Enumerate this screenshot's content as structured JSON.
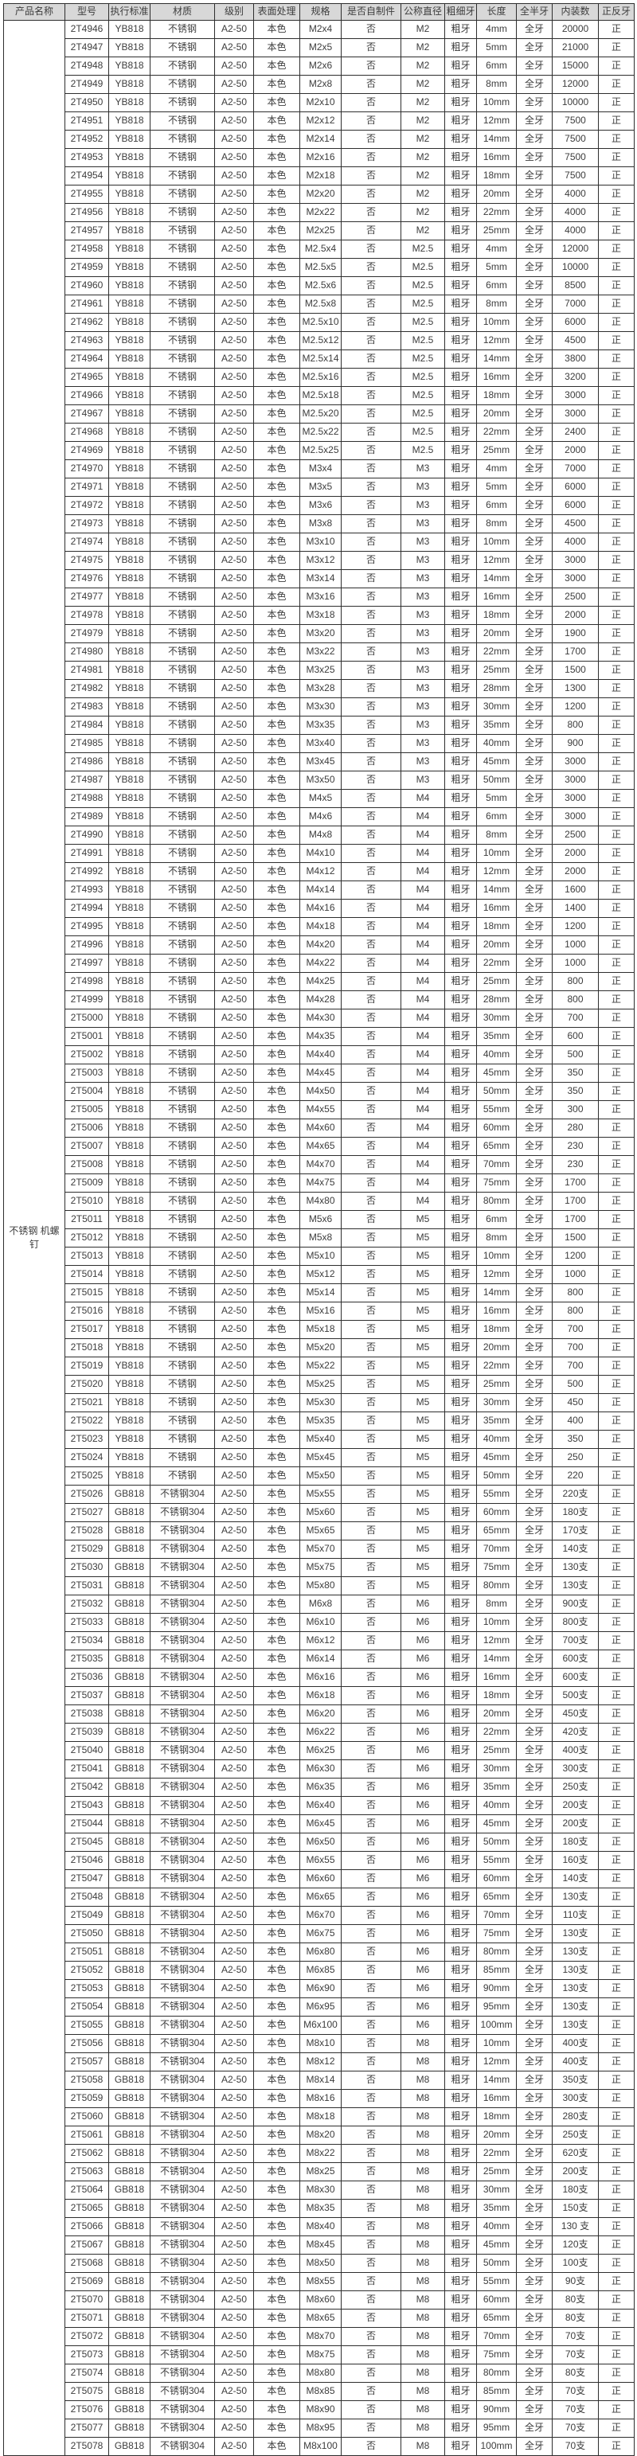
{
  "table": {
    "headers": [
      "产品名称",
      "型号",
      "执行标准",
      "材质",
      "级别",
      "表面处理",
      "规格",
      "是否自制件",
      "公称直径",
      "粗细牙",
      "长度",
      "全半牙",
      "内装数",
      "正反牙"
    ],
    "product_name": "不锈钢 机螺钉",
    "constants": {
      "grade": "A2-50",
      "surface": "本色",
      "self_made": "否",
      "thread": "粗牙",
      "full_thread": "全牙",
      "direction": "正"
    },
    "rows": [
      [
        "2T4946",
        "YB818",
        "不锈钢",
        "M2x4",
        "M2",
        "4mm",
        "20000"
      ],
      [
        "2T4947",
        "YB818",
        "不锈钢",
        "M2x5",
        "M2",
        "5mm",
        "21000"
      ],
      [
        "2T4948",
        "YB818",
        "不锈钢",
        "M2x6",
        "M2",
        "6mm",
        "15000"
      ],
      [
        "2T4949",
        "YB818",
        "不锈钢",
        "M2x8",
        "M2",
        "8mm",
        "12000"
      ],
      [
        "2T4950",
        "YB818",
        "不锈钢",
        "M2x10",
        "M2",
        "10mm",
        "10000"
      ],
      [
        "2T4951",
        "YB818",
        "不锈钢",
        "M2x12",
        "M2",
        "12mm",
        "7500"
      ],
      [
        "2T4952",
        "YB818",
        "不锈钢",
        "M2x14",
        "M2",
        "14mm",
        "7500"
      ],
      [
        "2T4953",
        "YB818",
        "不锈钢",
        "M2x16",
        "M2",
        "16mm",
        "7500"
      ],
      [
        "2T4954",
        "YB818",
        "不锈钢",
        "M2x18",
        "M2",
        "18mm",
        "7500"
      ],
      [
        "2T4955",
        "YB818",
        "不锈钢",
        "M2x20",
        "M2",
        "20mm",
        "4000"
      ],
      [
        "2T4956",
        "YB818",
        "不锈钢",
        "M2x22",
        "M2",
        "22mm",
        "4000"
      ],
      [
        "2T4957",
        "YB818",
        "不锈钢",
        "M2x25",
        "M2",
        "25mm",
        "4000"
      ],
      [
        "2T4958",
        "YB818",
        "不锈钢",
        "M2.5x4",
        "M2.5",
        "4mm",
        "12000"
      ],
      [
        "2T4959",
        "YB818",
        "不锈钢",
        "M2.5x5",
        "M2.5",
        "5mm",
        "10000"
      ],
      [
        "2T4960",
        "YB818",
        "不锈钢",
        "M2.5x6",
        "M2.5",
        "6mm",
        "8500"
      ],
      [
        "2T4961",
        "YB818",
        "不锈钢",
        "M2.5x8",
        "M2.5",
        "8mm",
        "7000"
      ],
      [
        "2T4962",
        "YB818",
        "不锈钢",
        "M2.5x10",
        "M2.5",
        "10mm",
        "6000"
      ],
      [
        "2T4963",
        "YB818",
        "不锈钢",
        "M2.5x12",
        "M2.5",
        "12mm",
        "4500"
      ],
      [
        "2T4964",
        "YB818",
        "不锈钢",
        "M2.5x14",
        "M2.5",
        "14mm",
        "3800"
      ],
      [
        "2T4965",
        "YB818",
        "不锈钢",
        "M2.5x16",
        "M2.5",
        "16mm",
        "3200"
      ],
      [
        "2T4966",
        "YB818",
        "不锈钢",
        "M2.5x18",
        "M2.5",
        "18mm",
        "3000"
      ],
      [
        "2T4967",
        "YB818",
        "不锈钢",
        "M2.5x20",
        "M2.5",
        "20mm",
        "3000"
      ],
      [
        "2T4968",
        "YB818",
        "不锈钢",
        "M2.5x22",
        "M2.5",
        "22mm",
        "2400"
      ],
      [
        "2T4969",
        "YB818",
        "不锈钢",
        "M2.5x25",
        "M2.5",
        "25mm",
        "2000"
      ],
      [
        "2T4970",
        "YB818",
        "不锈钢",
        "M3x4",
        "M3",
        "4mm",
        "7000"
      ],
      [
        "2T4971",
        "YB818",
        "不锈钢",
        "M3x5",
        "M3",
        "5mm",
        "6000"
      ],
      [
        "2T4972",
        "YB818",
        "不锈钢",
        "M3x6",
        "M3",
        "6mm",
        "6000"
      ],
      [
        "2T4973",
        "YB818",
        "不锈钢",
        "M3x8",
        "M3",
        "8mm",
        "4500"
      ],
      [
        "2T4974",
        "YB818",
        "不锈钢",
        "M3x10",
        "M3",
        "10mm",
        "4000"
      ],
      [
        "2T4975",
        "YB818",
        "不锈钢",
        "M3x12",
        "M3",
        "12mm",
        "3000"
      ],
      [
        "2T4976",
        "YB818",
        "不锈钢",
        "M3x14",
        "M3",
        "14mm",
        "3000"
      ],
      [
        "2T4977",
        "YB818",
        "不锈钢",
        "M3x16",
        "M3",
        "16mm",
        "2500"
      ],
      [
        "2T4978",
        "YB818",
        "不锈钢",
        "M3x18",
        "M3",
        "18mm",
        "2000"
      ],
      [
        "2T4979",
        "YB818",
        "不锈钢",
        "M3x20",
        "M3",
        "20mm",
        "1900"
      ],
      [
        "2T4980",
        "YB818",
        "不锈钢",
        "M3x22",
        "M3",
        "22mm",
        "1700"
      ],
      [
        "2T4981",
        "YB818",
        "不锈钢",
        "M3x25",
        "M3",
        "25mm",
        "1500"
      ],
      [
        "2T4982",
        "YB818",
        "不锈钢",
        "M3x28",
        "M3",
        "28mm",
        "1300"
      ],
      [
        "2T4983",
        "YB818",
        "不锈钢",
        "M3x30",
        "M3",
        "30mm",
        "1200"
      ],
      [
        "2T4984",
        "YB818",
        "不锈钢",
        "M3x35",
        "M3",
        "35mm",
        "800"
      ],
      [
        "2T4985",
        "YB818",
        "不锈钢",
        "M3x40",
        "M3",
        "40mm",
        "900"
      ],
      [
        "2T4986",
        "YB818",
        "不锈钢",
        "M3x45",
        "M3",
        "45mm",
        "3000"
      ],
      [
        "2T4987",
        "YB818",
        "不锈钢",
        "M3x50",
        "M3",
        "50mm",
        "3000"
      ],
      [
        "2T4988",
        "YB818",
        "不锈钢",
        "M4x5",
        "M4",
        "5mm",
        "3000"
      ],
      [
        "2T4989",
        "YB818",
        "不锈钢",
        "M4x6",
        "M4",
        "6mm",
        "3000"
      ],
      [
        "2T4990",
        "YB818",
        "不锈钢",
        "M4x8",
        "M4",
        "8mm",
        "2500"
      ],
      [
        "2T4991",
        "YB818",
        "不锈钢",
        "M4x10",
        "M4",
        "10mm",
        "2000"
      ],
      [
        "2T4992",
        "YB818",
        "不锈钢",
        "M4x12",
        "M4",
        "12mm",
        "2000"
      ],
      [
        "2T4993",
        "YB818",
        "不锈钢",
        "M4x14",
        "M4",
        "14mm",
        "1600"
      ],
      [
        "2T4994",
        "YB818",
        "不锈钢",
        "M4x16",
        "M4",
        "16mm",
        "1400"
      ],
      [
        "2T4995",
        "YB818",
        "不锈钢",
        "M4x18",
        "M4",
        "18mm",
        "1200"
      ],
      [
        "2T4996",
        "YB818",
        "不锈钢",
        "M4x20",
        "M4",
        "20mm",
        "1000"
      ],
      [
        "2T4997",
        "YB818",
        "不锈钢",
        "M4x22",
        "M4",
        "22mm",
        "1000"
      ],
      [
        "2T4998",
        "YB818",
        "不锈钢",
        "M4x25",
        "M4",
        "25mm",
        "800"
      ],
      [
        "2T4999",
        "YB818",
        "不锈钢",
        "M4x28",
        "M4",
        "28mm",
        "800"
      ],
      [
        "2T5000",
        "YB818",
        "不锈钢",
        "M4x30",
        "M4",
        "30mm",
        "700"
      ],
      [
        "2T5001",
        "YB818",
        "不锈钢",
        "M4x35",
        "M4",
        "35mm",
        "600"
      ],
      [
        "2T5002",
        "YB818",
        "不锈钢",
        "M4x40",
        "M4",
        "40mm",
        "500"
      ],
      [
        "2T5003",
        "YB818",
        "不锈钢",
        "M4x45",
        "M4",
        "45mm",
        "350"
      ],
      [
        "2T5004",
        "YB818",
        "不锈钢",
        "M4x50",
        "M4",
        "50mm",
        "350"
      ],
      [
        "2T5005",
        "YB818",
        "不锈钢",
        "M4x55",
        "M4",
        "55mm",
        "300"
      ],
      [
        "2T5006",
        "YB818",
        "不锈钢",
        "M4x60",
        "M4",
        "60mm",
        "280"
      ],
      [
        "2T5007",
        "YB818",
        "不锈钢",
        "M4x65",
        "M4",
        "65mm",
        "230"
      ],
      [
        "2T5008",
        "YB818",
        "不锈钢",
        "M4x70",
        "M4",
        "70mm",
        "230"
      ],
      [
        "2T5009",
        "YB818",
        "不锈钢",
        "M4x75",
        "M4",
        "75mm",
        "1700"
      ],
      [
        "2T5010",
        "YB818",
        "不锈钢",
        "M4x80",
        "M4",
        "80mm",
        "1700"
      ],
      [
        "2T5011",
        "YB818",
        "不锈钢",
        "M5x6",
        "M5",
        "6mm",
        "1700"
      ],
      [
        "2T5012",
        "YB818",
        "不锈钢",
        "M5x8",
        "M5",
        "8mm",
        "1500"
      ],
      [
        "2T5013",
        "YB818",
        "不锈钢",
        "M5x10",
        "M5",
        "10mm",
        "1200"
      ],
      [
        "2T5014",
        "YB818",
        "不锈钢",
        "M5x12",
        "M5",
        "12mm",
        "1000"
      ],
      [
        "2T5015",
        "YB818",
        "不锈钢",
        "M5x14",
        "M5",
        "14mm",
        "800"
      ],
      [
        "2T5016",
        "YB818",
        "不锈钢",
        "M5x16",
        "M5",
        "16mm",
        "800"
      ],
      [
        "2T5017",
        "YB818",
        "不锈钢",
        "M5x18",
        "M5",
        "18mm",
        "700"
      ],
      [
        "2T5018",
        "YB818",
        "不锈钢",
        "M5x20",
        "M5",
        "20mm",
        "700"
      ],
      [
        "2T5019",
        "YB818",
        "不锈钢",
        "M5x22",
        "M5",
        "22mm",
        "700"
      ],
      [
        "2T5020",
        "YB818",
        "不锈钢",
        "M5x25",
        "M5",
        "25mm",
        "500"
      ],
      [
        "2T5021",
        "YB818",
        "不锈钢",
        "M5x30",
        "M5",
        "30mm",
        "450"
      ],
      [
        "2T5022",
        "YB818",
        "不锈钢",
        "M5x35",
        "M5",
        "35mm",
        "400"
      ],
      [
        "2T5023",
        "YB818",
        "不锈钢",
        "M5x40",
        "M5",
        "40mm",
        "350"
      ],
      [
        "2T5024",
        "YB818",
        "不锈钢",
        "M5x45",
        "M5",
        "45mm",
        "250"
      ],
      [
        "2T5025",
        "YB818",
        "不锈钢",
        "M5x50",
        "M5",
        "50mm",
        "220"
      ],
      [
        "2T5026",
        "GB818",
        "不锈钢304",
        "M5x55",
        "M5",
        "55mm",
        "220支"
      ],
      [
        "2T5027",
        "GB818",
        "不锈钢304",
        "M5x60",
        "M5",
        "60mm",
        "180支"
      ],
      [
        "2T5028",
        "GB818",
        "不锈钢304",
        "M5x65",
        "M5",
        "65mm",
        "170支"
      ],
      [
        "2T5029",
        "GB818",
        "不锈钢304",
        "M5x70",
        "M5",
        "70mm",
        "140支"
      ],
      [
        "2T5030",
        "GB818",
        "不锈钢304",
        "M5x75",
        "M5",
        "75mm",
        "130支"
      ],
      [
        "2T5031",
        "GB818",
        "不锈钢304",
        "M5x80",
        "M5",
        "80mm",
        "130支"
      ],
      [
        "2T5032",
        "GB818",
        "不锈钢304",
        "M6x8",
        "M6",
        "8mm",
        "900支"
      ],
      [
        "2T5033",
        "GB818",
        "不锈钢304",
        "M6x10",
        "M6",
        "10mm",
        "800支"
      ],
      [
        "2T5034",
        "GB818",
        "不锈钢304",
        "M6x12",
        "M6",
        "12mm",
        "700支"
      ],
      [
        "2T5035",
        "GB818",
        "不锈钢304",
        "M6x14",
        "M6",
        "14mm",
        "600支"
      ],
      [
        "2T5036",
        "GB818",
        "不锈钢304",
        "M6x16",
        "M6",
        "16mm",
        "600支"
      ],
      [
        "2T5037",
        "GB818",
        "不锈钢304",
        "M6x18",
        "M6",
        "18mm",
        "500支"
      ],
      [
        "2T5038",
        "GB818",
        "不锈钢304",
        "M6x20",
        "M6",
        "20mm",
        "450支"
      ],
      [
        "2T5039",
        "GB818",
        "不锈钢304",
        "M6x22",
        "M6",
        "22mm",
        "420支"
      ],
      [
        "2T5040",
        "GB818",
        "不锈钢304",
        "M6x25",
        "M6",
        "25mm",
        "400支"
      ],
      [
        "2T5041",
        "GB818",
        "不锈钢304",
        "M6x30",
        "M6",
        "30mm",
        "300支"
      ],
      [
        "2T5042",
        "GB818",
        "不锈钢304",
        "M6x35",
        "M6",
        "35mm",
        "250支"
      ],
      [
        "2T5043",
        "GB818",
        "不锈钢304",
        "M6x40",
        "M6",
        "40mm",
        "200支"
      ],
      [
        "2T5044",
        "GB818",
        "不锈钢304",
        "M6x45",
        "M6",
        "45mm",
        "200支"
      ],
      [
        "2T5045",
        "GB818",
        "不锈钢304",
        "M6x50",
        "M6",
        "50mm",
        "180支"
      ],
      [
        "2T5046",
        "GB818",
        "不锈钢304",
        "M6x55",
        "M6",
        "55mm",
        "160支"
      ],
      [
        "2T5047",
        "GB818",
        "不锈钢304",
        "M6x60",
        "M6",
        "60mm",
        "140支"
      ],
      [
        "2T5048",
        "GB818",
        "不锈钢304",
        "M6x65",
        "M6",
        "65mm",
        "130支"
      ],
      [
        "2T5049",
        "GB818",
        "不锈钢304",
        "M6x70",
        "M6",
        "70mm",
        "110支"
      ],
      [
        "2T5050",
        "GB818",
        "不锈钢304",
        "M6x75",
        "M6",
        "75mm",
        "130支"
      ],
      [
        "2T5051",
        "GB818",
        "不锈钢304",
        "M6x80",
        "M6",
        "80mm",
        "130支"
      ],
      [
        "2T5052",
        "GB818",
        "不锈钢304",
        "M6x85",
        "M6",
        "85mm",
        "130支"
      ],
      [
        "2T5053",
        "GB818",
        "不锈钢304",
        "M6x90",
        "M6",
        "90mm",
        "130支"
      ],
      [
        "2T5054",
        "GB818",
        "不锈钢304",
        "M6x95",
        "M6",
        "95mm",
        "130支"
      ],
      [
        "2T5055",
        "GB818",
        "不锈钢304",
        "M6x100",
        "M6",
        "100mm",
        "130支"
      ],
      [
        "2T5056",
        "GB818",
        "不锈钢304",
        "M8x10",
        "M8",
        "10mm",
        "400支"
      ],
      [
        "2T5057",
        "GB818",
        "不锈钢304",
        "M8x12",
        "M8",
        "12mm",
        "400支"
      ],
      [
        "2T5058",
        "GB818",
        "不锈钢304",
        "M8x14",
        "M8",
        "14mm",
        "350支"
      ],
      [
        "2T5059",
        "GB818",
        "不锈钢304",
        "M8x16",
        "M8",
        "16mm",
        "300支"
      ],
      [
        "2T5060",
        "GB818",
        "不锈钢304",
        "M8x18",
        "M8",
        "18mm",
        "280支"
      ],
      [
        "2T5061",
        "GB818",
        "不锈钢304",
        "M8x20",
        "M8",
        "20mm",
        "250支"
      ],
      [
        "2T5062",
        "GB818",
        "不锈钢304",
        "M8x22",
        "M8",
        "22mm",
        "620支"
      ],
      [
        "2T5063",
        "GB818",
        "不锈钢304",
        "M8x25",
        "M8",
        "25mm",
        "200支"
      ],
      [
        "2T5064",
        "GB818",
        "不锈钢304",
        "M8x30",
        "M8",
        "30mm",
        "180支"
      ],
      [
        "2T5065",
        "GB818",
        "不锈钢304",
        "M8x35",
        "M8",
        "35mm",
        "150支"
      ],
      [
        "2T5066",
        "GB818",
        "不锈钢304",
        "M8x40",
        "M8",
        "40mm",
        "130 支"
      ],
      [
        "2T5067",
        "GB818",
        "不锈钢304",
        "M8x45",
        "M8",
        "45mm",
        "120支"
      ],
      [
        "2T5068",
        "GB818",
        "不锈钢304",
        "M8x50",
        "M8",
        "50mm",
        "100支"
      ],
      [
        "2T5069",
        "GB818",
        "不锈钢304",
        "M8x55",
        "M8",
        "55mm",
        "90支"
      ],
      [
        "2T5070",
        "GB818",
        "不锈钢304",
        "M8x60",
        "M8",
        "60mm",
        "80支"
      ],
      [
        "2T5071",
        "GB818",
        "不锈钢304",
        "M8x65",
        "M8",
        "65mm",
        "80支"
      ],
      [
        "2T5072",
        "GB818",
        "不锈钢304",
        "M8x70",
        "M8",
        "70mm",
        "70支"
      ],
      [
        "2T5073",
        "GB818",
        "不锈钢304",
        "M8x75",
        "M8",
        "75mm",
        "70支"
      ],
      [
        "2T5074",
        "GB818",
        "不锈钢304",
        "M8x80",
        "M8",
        "80mm",
        "80支"
      ],
      [
        "2T5075",
        "GB818",
        "不锈钢304",
        "M8x85",
        "M8",
        "85mm",
        "70支"
      ],
      [
        "2T5076",
        "GB818",
        "不锈钢304",
        "M8x90",
        "M8",
        "90mm",
        "70支"
      ],
      [
        "2T5077",
        "GB818",
        "不锈钢304",
        "M8x95",
        "M8",
        "95mm",
        "70支"
      ],
      [
        "2T5078",
        "GB818",
        "不锈钢304",
        "M8x100",
        "M8",
        "100mm",
        "70支"
      ]
    ]
  }
}
